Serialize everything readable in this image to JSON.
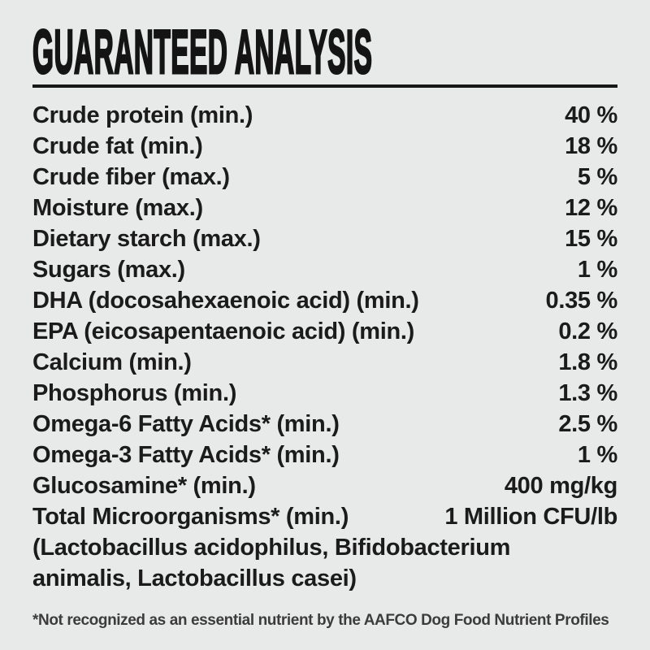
{
  "page": {
    "background_color": "#e8e9e9",
    "text_color": "#1b1b1b",
    "footnote_color": "#3c3c3c"
  },
  "header": {
    "title": "GUARANTEED ANALYSIS"
  },
  "analysis": {
    "rows": [
      {
        "label": "Crude protein (min.)",
        "value": "40 %"
      },
      {
        "label": "Crude fat (min.)",
        "value": "18 %"
      },
      {
        "label": "Crude fiber (max.)",
        "value": "5 %"
      },
      {
        "label": "Moisture (max.)",
        "value": "12 %"
      },
      {
        "label": "Dietary starch (max.)",
        "value": "15 %"
      },
      {
        "label": "Sugars (max.)",
        "value": "1 %"
      },
      {
        "label": "DHA (docosahexaenoic acid) (min.)",
        "value": "0.35 %"
      },
      {
        "label": "EPA (eicosapentaenoic acid) (min.)",
        "value": "0.2 %"
      },
      {
        "label": "Calcium (min.)",
        "value": "1.8 %"
      },
      {
        "label": "Phosphorus (min.)",
        "value": "1.3 %"
      },
      {
        "label": "Omega-6 Fatty Acids* (min.)",
        "value": "2.5 %"
      },
      {
        "label": "Omega-3 Fatty Acids* (min.)",
        "value": "1 %"
      },
      {
        "label": "Glucosamine* (min.)",
        "value": "400 mg/kg"
      },
      {
        "label": "Total Microorganisms* (min.)",
        "value": "1 Million CFU/lb"
      }
    ],
    "microorganism_species_lines": [
      "(Lactobacillus acidophilus, Bifidobacterium",
      "animalis, Lactobacillus casei)"
    ]
  },
  "footnote": "*Not recognized as an essential nutrient by the AAFCO Dog Food Nutrient Profiles"
}
